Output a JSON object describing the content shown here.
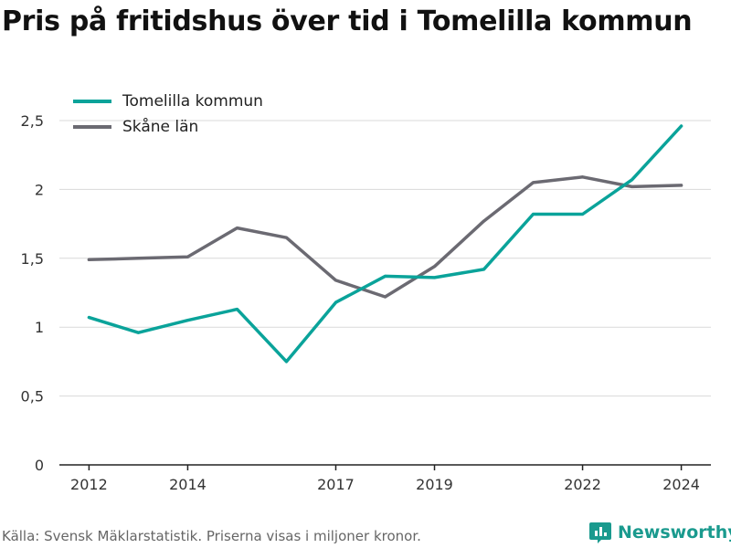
{
  "title": "Pris på fritidshus över tid i Tomelilla kommun",
  "source": "Källa: Svensk Mäklarstatistik. Priserna visas i miljoner kronor.",
  "brand": "Newsworthy",
  "colors": {
    "tomelilla": "#0aa39a",
    "skane": "#6b6a72",
    "grid": "#d9d9d9",
    "axis": "#222222"
  },
  "chart_data": {
    "type": "line",
    "title": "Pris på fritidshus över tid i Tomelilla kommun",
    "x": [
      2012,
      2013,
      2014,
      2015,
      2016,
      2017,
      2018,
      2019,
      2020,
      2021,
      2022,
      2023,
      2024
    ],
    "x_ticks": [
      2012,
      2014,
      2017,
      2019,
      2022,
      2024
    ],
    "y_ticks": [
      0,
      0.5,
      1,
      1.5,
      2,
      2.5
    ],
    "y_tick_labels": [
      "0",
      "0,5",
      "1",
      "1,5",
      "2",
      "2,5"
    ],
    "xlim": [
      2011.4,
      2024.6
    ],
    "ylim": [
      0,
      2.5
    ],
    "grid": true,
    "legend_position": "top-left",
    "series": [
      {
        "name": "Tomelilla kommun",
        "color": "#0aa39a",
        "values": [
          1.07,
          0.96,
          1.05,
          1.13,
          0.75,
          1.18,
          1.37,
          1.36,
          1.42,
          1.82,
          1.82,
          2.07,
          2.46
        ]
      },
      {
        "name": "Skåne län",
        "color": "#6b6a72",
        "values": [
          1.49,
          1.5,
          1.51,
          1.72,
          1.65,
          1.34,
          1.22,
          1.44,
          1.77,
          2.05,
          2.09,
          2.02,
          2.03
        ]
      }
    ]
  }
}
